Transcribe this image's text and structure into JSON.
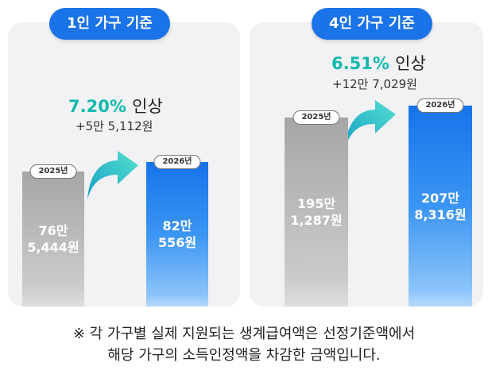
{
  "chart_data": [
    {
      "type": "bar",
      "title": "1인 가구 기준",
      "categories": [
        "2025년",
        "2026년"
      ],
      "values": [
        765444,
        820556
      ],
      "value_labels": [
        "76만\n5,444원",
        "82만\n556원"
      ],
      "increase_percent": "7.20%",
      "increase_word": "인상",
      "increase_amount": "+5만 5,112원",
      "colors": [
        "#b3b3b3",
        "#1f7bef"
      ]
    },
    {
      "type": "bar",
      "title": "4인 가구 기준",
      "categories": [
        "2025년",
        "2026년"
      ],
      "values": [
        1951287,
        2078316
      ],
      "value_labels": [
        "195만\n1,287원",
        "207만\n8,316원"
      ],
      "increase_percent": "6.51%",
      "increase_word": "인상",
      "increase_amount": "+12만 7,029원",
      "colors": [
        "#b3b3b3",
        "#1f7bef"
      ]
    }
  ],
  "footnote": {
    "line1": "※ 각 가구별 실제 지원되는 생계급여액은 선정기준액에서",
    "line2": "해당 가구의 소득인정액을 차감한 금액입니다."
  },
  "colors": {
    "accent_blue": "#1a73e8",
    "increase_teal": "#12b8ad",
    "panel_bg": "#f2f2f4"
  }
}
